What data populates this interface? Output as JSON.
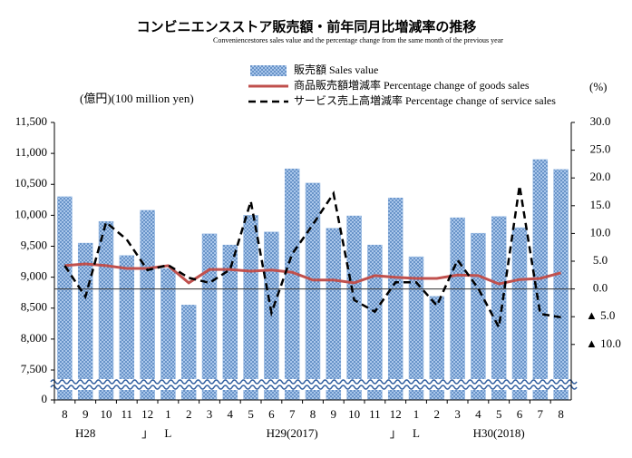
{
  "chart_data": {
    "type": "bar-line",
    "title": "コンビニエンスストア販売額・前年同月比増減率の推移",
    "subtitle": "Conveniencestores sales value and the percentage change from the same month of the previous year",
    "y_label": "(億円)(100 million yen)",
    "y2_label": "(%)",
    "categories": [
      "8",
      "9",
      "10",
      "11",
      "12",
      "1",
      "2",
      "3",
      "4",
      "5",
      "6",
      "7",
      "8",
      "9",
      "10",
      "11",
      "12",
      "1",
      "2",
      "3",
      "4",
      "5",
      "6",
      "7",
      "8"
    ],
    "period_labels": [
      null,
      "H28",
      null,
      null,
      "」",
      "L",
      null,
      null,
      null,
      null,
      null,
      "H29(2017)",
      null,
      null,
      null,
      null,
      "」",
      "L",
      null,
      null,
      null,
      "H30(2018)",
      null,
      null,
      null
    ],
    "series": [
      {
        "name": "販売額 Sales value",
        "kind": "bar",
        "color": "#8fb4e0",
        "values": [
          10300,
          9550,
          9900,
          9350,
          10080,
          9140,
          8550,
          9700,
          9520,
          10000,
          9730,
          10750,
          10520,
          9790,
          9990,
          9520,
          10280,
          9330,
          8690,
          9960,
          9710,
          9980,
          9800,
          10900,
          10740
        ]
      },
      {
        "name": "商品販売額増減率 Percentage change of goods sales",
        "kind": "line",
        "axis": "y2",
        "color": "#c0504d",
        "values": [
          4.2,
          4.5,
          4.2,
          3.7,
          3.7,
          4.2,
          1.1,
          3.5,
          3.5,
          3.2,
          3.4,
          3.0,
          1.6,
          1.6,
          1.1,
          2.4,
          2.1,
          1.9,
          1.9,
          2.5,
          2.4,
          0.9,
          1.7,
          1.9,
          2.9
        ]
      },
      {
        "name": "サービス売上高増減率 Percentage change of service sales",
        "kind": "dashed-line",
        "axis": "y2",
        "color": "#000000",
        "values": [
          4.2,
          -1.4,
          12.0,
          8.9,
          3.4,
          4.3,
          2.0,
          1.1,
          3.5,
          15.8,
          -4.3,
          6.3,
          11.6,
          17.2,
          -2.0,
          -4.1,
          1.2,
          1.2,
          -3.0,
          5.2,
          0.1,
          -6.9,
          18.6,
          -4.5,
          -5.1
        ]
      }
    ],
    "ylim": [
      7500,
      11500
    ],
    "axis_break": true,
    "yticks": [
      0,
      {
        "value": 7500,
        "label": "7,500"
      },
      {
        "value": 8000,
        "label": "8,000"
      },
      {
        "value": 8500,
        "label": "8,500"
      },
      {
        "value": 9000,
        "label": "9,000"
      },
      {
        "value": 9500,
        "label": "9,500"
      },
      {
        "value": 10000,
        "label": "10,000"
      },
      {
        "value": 10500,
        "label": "10,500"
      },
      {
        "value": 11000,
        "label": "11,000"
      },
      {
        "value": 11500,
        "label": "11,500"
      }
    ],
    "y2lim": [
      -20,
      30
    ],
    "y2ticks": [
      {
        "value": -10,
        "label": "▲ 10.0"
      },
      {
        "value": -5,
        "label": "▲ 5.0"
      },
      {
        "value": 0,
        "label": "0.0"
      },
      {
        "value": 5,
        "label": "5.0"
      },
      {
        "value": 10,
        "label": "10.0"
      },
      {
        "value": 15,
        "label": "15.0"
      },
      {
        "value": 20,
        "label": "20.0"
      },
      {
        "value": 25,
        "label": "25.0"
      },
      {
        "value": 30,
        "label": "30.0"
      }
    ],
    "zero_line_y2": true
  }
}
